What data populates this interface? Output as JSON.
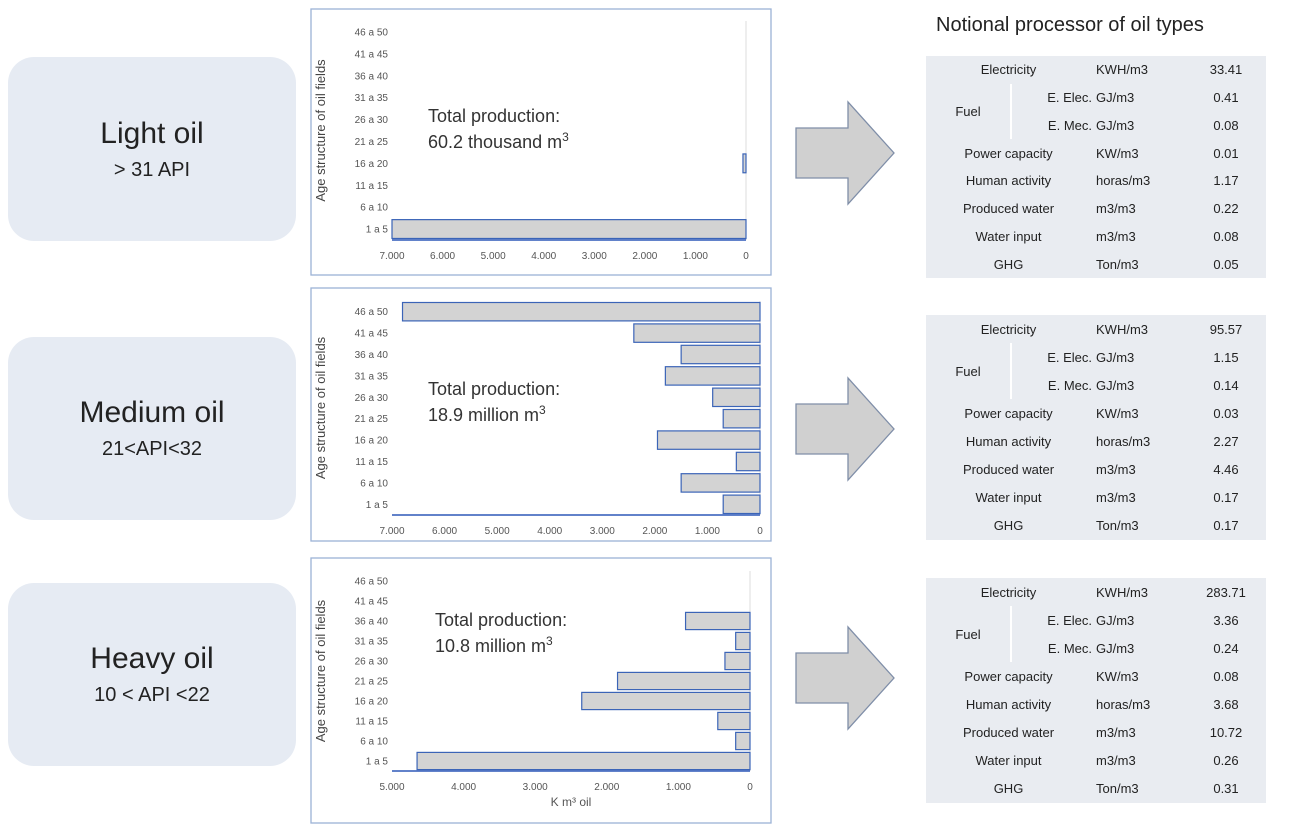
{
  "title": "Notional processor of oil types",
  "age_categories": [
    "1 a 5",
    "6 a 10",
    "11 a 15",
    "16 a 20",
    "21 a 25",
    "26 a 30",
    "31 a 35",
    "36 a 40",
    "41 a 45",
    "46 a 50"
  ],
  "oils": [
    {
      "name": "Light  oil",
      "api": "> 31 API"
    },
    {
      "name": "Medium  oil",
      "api": "21<API<32"
    },
    {
      "name": "Heavy oil",
      "api": "10 < API <22"
    }
  ],
  "totals": [
    {
      "label": "Total production:",
      "value": "60.2 thousand m",
      "sup": "3"
    },
    {
      "label": "Total production:",
      "value": "18.9 million m",
      "sup": "3"
    },
    {
      "label": "Total production:",
      "value": "10.8 million m",
      "sup": "3"
    }
  ],
  "row_labels": {
    "electricity": "Electricity",
    "fuel": "Fuel",
    "e_elec": "E. Elec.",
    "e_mec": "E. Mec.",
    "power": "Power capacity",
    "human": "Human activity",
    "produced_water": "Produced water",
    "water_input": "Water input",
    "ghg": "GHG"
  },
  "units": {
    "electricity": "KWH/m3",
    "e_elec": "GJ/m3",
    "e_mec": "GJ/m3",
    "power": "KW/m3",
    "human": "horas/m3",
    "produced_water": "m3/m3",
    "water_input": "m3/m3",
    "ghg": "Ton/m3"
  },
  "tables": [
    {
      "electricity": "33.41",
      "e_elec": "0.41",
      "e_mec": "0.08",
      "power": "0.01",
      "human": "1.17",
      "produced_water": "0.22",
      "water_input": "0.08",
      "ghg": "0.05"
    },
    {
      "electricity": "95.57",
      "e_elec": "1.15",
      "e_mec": "0.14",
      "power": "0.03",
      "human": "2.27",
      "produced_water": "4.46",
      "water_input": "0.17",
      "ghg": "0.17"
    },
    {
      "electricity": "283.71",
      "e_elec": "3.36",
      "e_mec": "0.24",
      "power": "0.08",
      "human": "3.68",
      "produced_water": "10.72",
      "water_input": "0.26",
      "ghg": "0.31"
    }
  ],
  "chart_data": [
    {
      "type": "bar",
      "orientation": "horizontal",
      "x_reversed": true,
      "ylabel": "Age structure of oil fields",
      "xlabel": "",
      "xlim": [
        0,
        7000
      ],
      "x_ticks": [
        "7.000",
        "6.000",
        "5.000",
        "4.000",
        "3.000",
        "2.000",
        "1.000",
        "0"
      ],
      "categories": [
        "1 a 5",
        "6 a 10",
        "11 a 15",
        "16 a 20",
        "21 a 25",
        "26 a 30",
        "31 a 35",
        "36 a 40",
        "41 a 45",
        "46 a 50"
      ],
      "values": [
        7000,
        0,
        0,
        60,
        0,
        0,
        0,
        0,
        0,
        0
      ]
    },
    {
      "type": "bar",
      "orientation": "horizontal",
      "x_reversed": true,
      "ylabel": "Age structure of oil fields",
      "xlabel": "",
      "xlim": [
        0,
        7000
      ],
      "x_ticks": [
        "7.000",
        "6.000",
        "5.000",
        "4.000",
        "3.000",
        "2.000",
        "1.000",
        "0"
      ],
      "categories": [
        "1 a 5",
        "6 a 10",
        "11 a 15",
        "16 a 20",
        "21 a 25",
        "26 a 30",
        "31 a 35",
        "36 a 40",
        "41 a 45",
        "46 a 50"
      ],
      "values": [
        700,
        1500,
        450,
        1950,
        700,
        900,
        1800,
        1500,
        2400,
        6800
      ]
    },
    {
      "type": "bar",
      "orientation": "horizontal",
      "x_reversed": true,
      "ylabel": "Age structure of oil fields",
      "xlabel": "K m³ oil",
      "xlim": [
        0,
        5000
      ],
      "x_ticks": [
        "5.000",
        "4.000",
        "3.000",
        "2.000",
        "1.000",
        "0"
      ],
      "categories": [
        "1 a 5",
        "6 a 10",
        "11 a 15",
        "16 a 20",
        "21 a 25",
        "26 a 30",
        "31 a 35",
        "36 a 40",
        "41 a 45",
        "46 a 50"
      ],
      "values": [
        4650,
        200,
        450,
        2350,
        1850,
        350,
        200,
        900,
        0,
        0
      ]
    }
  ]
}
